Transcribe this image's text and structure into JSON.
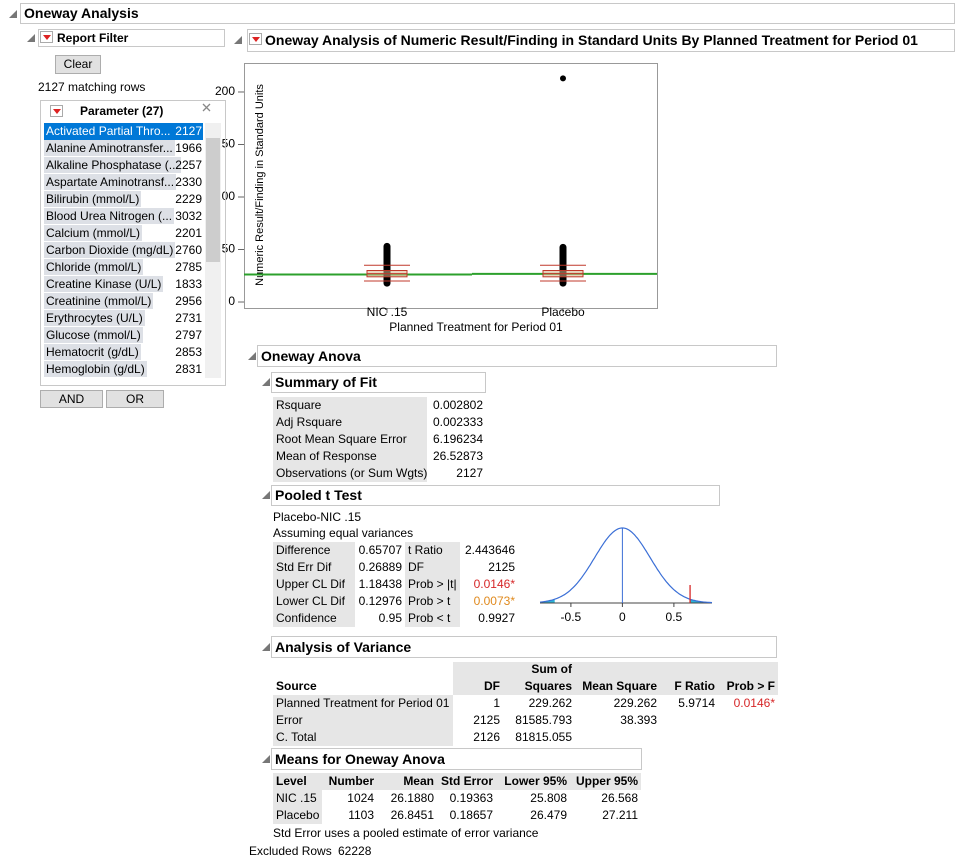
{
  "header": {
    "title": "Oneway Analysis"
  },
  "filter": {
    "title": "Report Filter",
    "clear": "Clear",
    "matching": "2127 matching rows",
    "list_title": "Parameter (27)",
    "items": [
      {
        "name": "Activated Partial Thro...",
        "count": 2127
      },
      {
        "name": "Alanine Aminotransfer...",
        "count": 1966
      },
      {
        "name": "Alkaline Phosphatase (...",
        "count": 2257
      },
      {
        "name": "Aspartate Aminotransf...",
        "count": 2330
      },
      {
        "name": "Bilirubin (mmol/L)",
        "count": 2229
      },
      {
        "name": "Blood Urea Nitrogen (...",
        "count": 3032
      },
      {
        "name": "Calcium (mmol/L)",
        "count": 2201
      },
      {
        "name": "Carbon Dioxide (mg/dL)",
        "count": 2760
      },
      {
        "name": "Chloride (mmol/L)",
        "count": 2785
      },
      {
        "name": "Creatine Kinase (U/L)",
        "count": 1833
      },
      {
        "name": "Creatinine (mmol/L)",
        "count": 2956
      },
      {
        "name": "Erythrocytes (U/L)",
        "count": 2731
      },
      {
        "name": "Glucose (mmol/L)",
        "count": 2797
      },
      {
        "name": "Hematocrit (g/dL)",
        "count": 2853
      },
      {
        "name": "Hemoglobin (g/dL)",
        "count": 2831
      }
    ],
    "buttons": [
      "AND",
      "OR"
    ]
  },
  "report": {
    "title": "Oneway Analysis of Numeric Result/Finding in Standard Units By Planned Treatment for Period 01"
  },
  "plot": {
    "y_label": "Numeric Result/Finding in Standard Units",
    "x_label": "Planned Treatment for Period 01",
    "categories": [
      "NIC .15",
      "Placebo"
    ],
    "ylim": [
      -5.7,
      227.6
    ],
    "yticks": [
      0,
      50,
      100,
      150,
      200
    ],
    "ranges": [
      [
        18,
        53
      ],
      [
        18,
        52
      ]
    ],
    "outliers": [
      [],
      [
        213
      ]
    ],
    "boxes": [
      [
        24,
        27,
        30
      ],
      [
        24,
        27,
        30
      ]
    ],
    "whiskers": [
      [
        20,
        35
      ],
      [
        20,
        35
      ]
    ]
  },
  "anova_title": "Oneway Anova",
  "summary": {
    "title": "Summary of Fit",
    "rows": [
      [
        "Rsquare",
        "0.002802"
      ],
      [
        "Adj Rsquare",
        "0.002333"
      ],
      [
        "Root Mean Square Error",
        "6.196234"
      ],
      [
        "Mean of Response",
        "26.52873"
      ],
      [
        "Observations (or Sum Wgts)",
        "2127"
      ]
    ]
  },
  "pooled": {
    "title": "Pooled t Test",
    "comparison": "Placebo-NIC .15",
    "assumption": "Assuming equal variances",
    "rows": [
      [
        "Difference",
        "0.65707",
        "t Ratio",
        "2.443646"
      ],
      [
        "Std Err Dif",
        "0.26889",
        "DF",
        "2125"
      ],
      [
        "Upper CL Dif",
        "1.18438",
        "Prob > |t|",
        "0.0146*"
      ],
      [
        "Lower CL Dif",
        "0.12976",
        "Prob > t",
        "0.0073*"
      ],
      [
        "Confidence",
        "0.95",
        "Prob < t",
        "0.9927"
      ]
    ],
    "xlim": [
      -0.8,
      0.87
    ],
    "xticks": [
      -0.5,
      0,
      0.5
    ]
  },
  "variance": {
    "title": "Analysis of Variance",
    "columns": [
      "Source",
      "DF",
      "Sum of Squares",
      "Mean Square",
      "F Ratio",
      "Prob > F"
    ],
    "rows": [
      [
        "Planned Treatment for Period 01",
        "1",
        "229.262",
        "229.262",
        "5.9714",
        "0.0146*"
      ],
      [
        "Error",
        "2125",
        "81585.793",
        "38.393"
      ],
      [
        "C. Total",
        "2126",
        "81815.055"
      ]
    ]
  },
  "means": {
    "title": "Means for Oneway Anova",
    "columns": [
      "Level",
      "Number",
      "Mean",
      "Std Error",
      "Lower 95%",
      "Upper 95%"
    ],
    "rows": [
      [
        "NIC .15",
        "1024",
        "26.1880",
        "0.19363",
        "25.808",
        "26.568"
      ],
      [
        "Placebo",
        "1103",
        "26.8451",
        "0.18657",
        "26.479",
        "27.211"
      ]
    ],
    "note": "Std Error uses a pooled estimate of error variance"
  },
  "footer": {
    "label": "Excluded Rows",
    "value": "62228"
  }
}
